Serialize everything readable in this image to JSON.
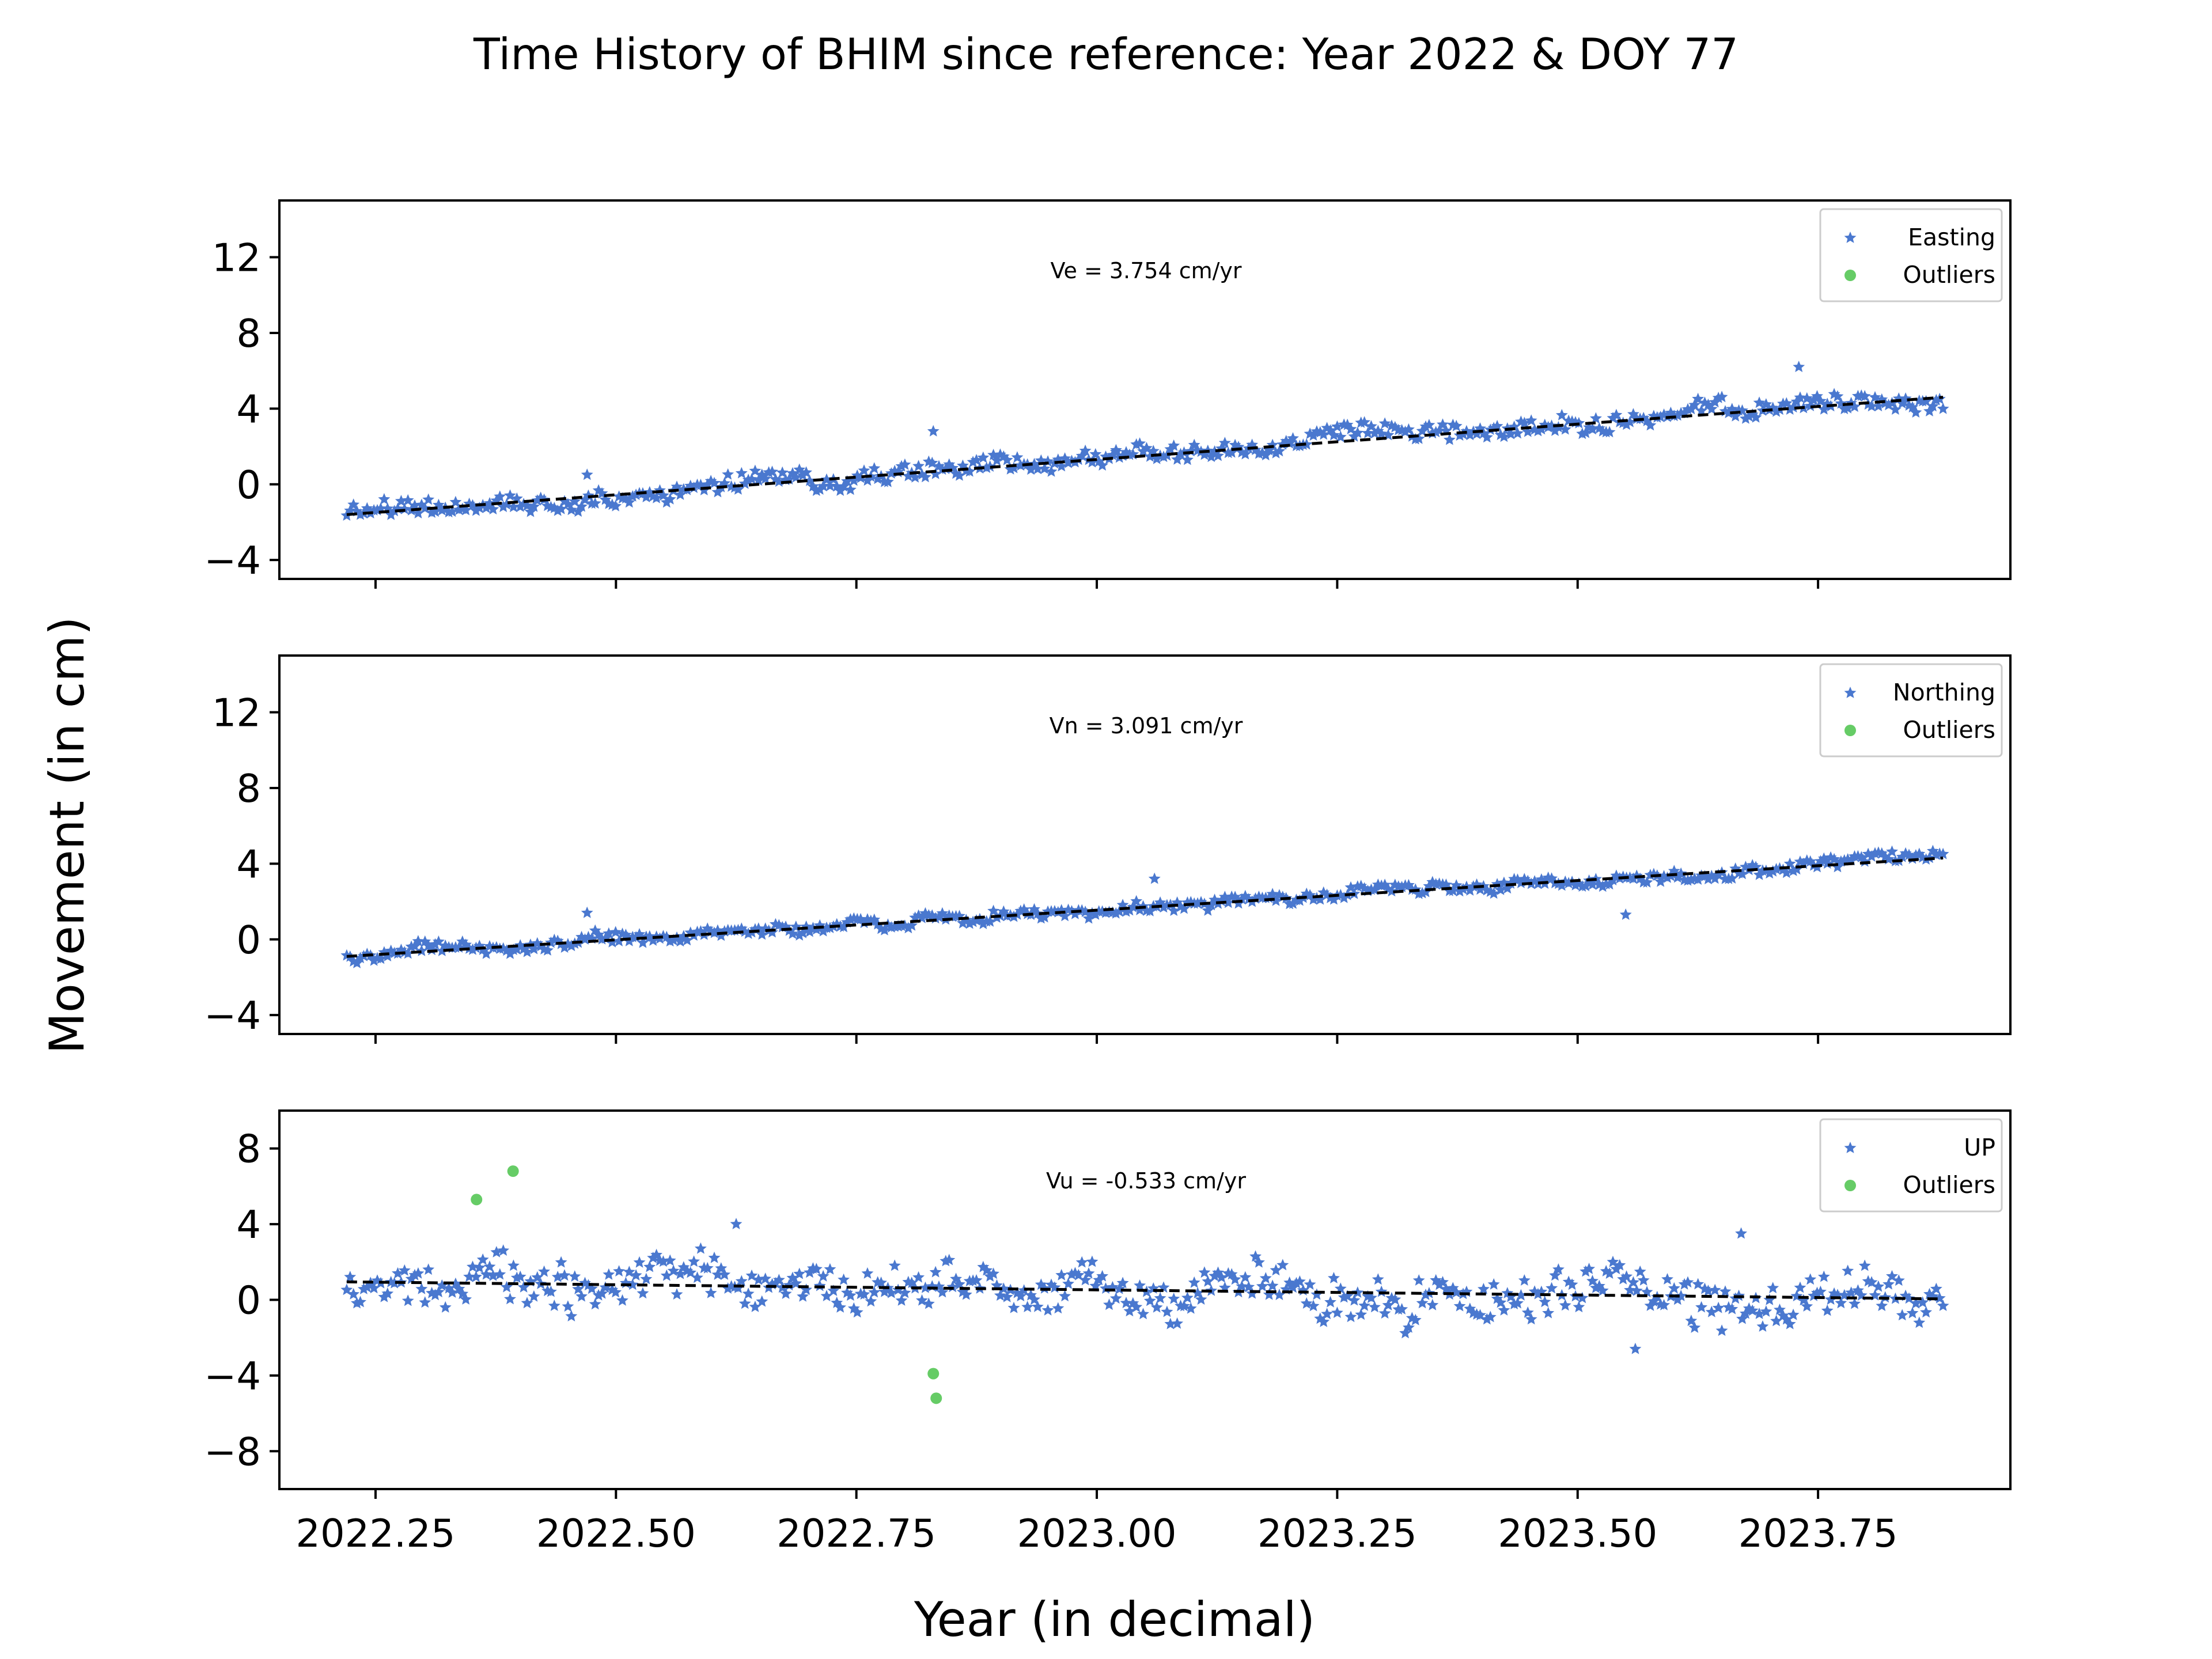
{
  "figure": {
    "title": "Time History of BHIM since reference: Year 2022 & DOY 77",
    "ylabel": "Movement (in cm)",
    "xlabel": "Year (in decimal)"
  },
  "colors": {
    "series": "#4a78cf",
    "outliers": "#66cc66",
    "trend": "#000000"
  },
  "chart_data": [
    {
      "type": "scatter",
      "component": "Easting",
      "annotation": "Ve =  3.754 cm/yr",
      "legend": [
        "Easting",
        "Outliers"
      ],
      "legend_position": "top-right",
      "xlim": [
        2022.15,
        2023.95
      ],
      "ylim": [
        -5,
        15
      ],
      "xticks": [
        2022.25,
        2022.5,
        2022.75,
        2023.0,
        2023.25,
        2023.5,
        2023.75
      ],
      "xtick_labels": [
        "2022.25",
        "2022.50",
        "2022.75",
        "2023.00",
        "2023.25",
        "2023.50",
        "2023.75"
      ],
      "yticks": [
        -4,
        0,
        4,
        8,
        12
      ],
      "ytick_labels": [
        "−4",
        "0",
        "4",
        "8",
        "12"
      ],
      "trend": {
        "x": [
          2022.22,
          2023.88
        ],
        "y": [
          -1.6,
          4.6
        ]
      },
      "noise": 0.45,
      "x_range": [
        2022.22,
        2023.88
      ],
      "n_points": 470,
      "outliers": {
        "x": [],
        "y": []
      },
      "anomalies": {
        "x": [
          2022.83,
          2023.73,
          2022.47,
          2023.02
        ],
        "y": [
          2.8,
          6.2,
          0.5,
          1.8
        ]
      }
    },
    {
      "type": "scatter",
      "component": "Northing",
      "annotation": "Vn =  3.091 cm/yr",
      "legend": [
        "Northing",
        "Outliers"
      ],
      "legend_position": "top-right",
      "xlim": [
        2022.15,
        2023.95
      ],
      "ylim": [
        -5,
        15
      ],
      "xticks": [
        2022.25,
        2022.5,
        2022.75,
        2023.0,
        2023.25,
        2023.5,
        2023.75
      ],
      "xtick_labels": [
        "2022.25",
        "2022.50",
        "2022.75",
        "2023.00",
        "2023.25",
        "2023.50",
        "2023.75"
      ],
      "yticks": [
        -4,
        0,
        4,
        8,
        12
      ],
      "ytick_labels": [
        "−4",
        "0",
        "4",
        "8",
        "12"
      ],
      "trend": {
        "x": [
          2022.22,
          2023.88
        ],
        "y": [
          -0.9,
          4.3
        ]
      },
      "noise": 0.3,
      "x_range": [
        2022.22,
        2023.88
      ],
      "n_points": 470,
      "outliers": {
        "x": [],
        "y": []
      },
      "anomalies": {
        "x": [
          2022.47,
          2023.55,
          2023.06
        ],
        "y": [
          1.4,
          1.3,
          3.2
        ]
      }
    },
    {
      "type": "scatter",
      "component": "UP",
      "annotation": "Vu = -0.533 cm/yr",
      "legend": [
        "UP",
        "Outliers"
      ],
      "legend_position": "top-right",
      "xlim": [
        2022.15,
        2023.95
      ],
      "ylim": [
        -10,
        10
      ],
      "xticks": [
        2022.25,
        2022.5,
        2022.75,
        2023.0,
        2023.25,
        2023.5,
        2023.75
      ],
      "xtick_labels": [
        "2022.25",
        "2022.50",
        "2022.75",
        "2023.00",
        "2023.25",
        "2023.50",
        "2023.75"
      ],
      "yticks": [
        -8,
        -4,
        0,
        4,
        8
      ],
      "ytick_labels": [
        "−8",
        "−4",
        "0",
        "4",
        "8"
      ],
      "trend": {
        "x": [
          2022.22,
          2023.88
        ],
        "y": [
          0.95,
          0.05
        ]
      },
      "noise": 1.2,
      "x_range": [
        2022.22,
        2023.88
      ],
      "n_points": 470,
      "outliers": {
        "x": [
          2022.355,
          2022.393,
          2022.83,
          2022.833
        ],
        "y": [
          5.3,
          6.8,
          -3.9,
          -5.2
        ]
      },
      "anomalies": {
        "x": [
          2022.625,
          2023.67,
          2023.56
        ],
        "y": [
          4.0,
          3.5,
          -2.6
        ]
      }
    }
  ]
}
